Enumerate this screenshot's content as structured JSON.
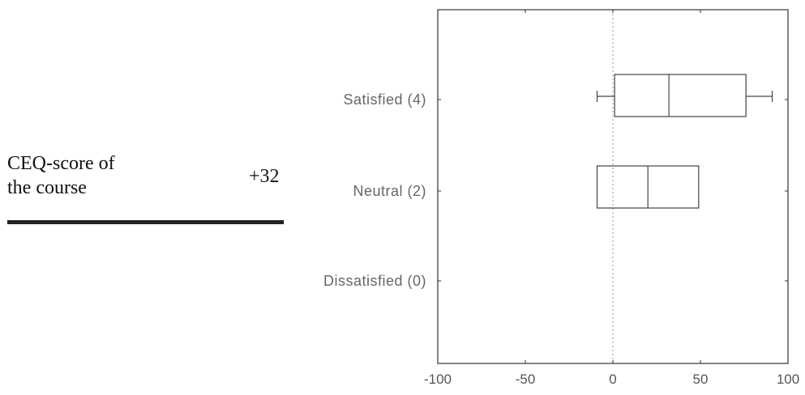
{
  "left_panel": {
    "label_line1": "CEQ-score of",
    "label_line2": "the course",
    "score_value": "+32"
  },
  "chart_data": {
    "type": "boxplot",
    "orientation": "horizontal",
    "title": "",
    "xlabel": "",
    "ylabel": "",
    "xlim": [
      -100,
      100
    ],
    "xticks": [
      -100,
      -50,
      0,
      50,
      100
    ],
    "xtick_labels": [
      "-100",
      "-50",
      "0",
      "50",
      "100"
    ],
    "categories": [
      "Satisfied (4)",
      "Neutral (2)",
      "Dissatisfied (0)"
    ],
    "boxes": [
      {
        "category": "Satisfied (4)",
        "whisker_low": -9,
        "q1": 1,
        "median": 32,
        "q3": 76,
        "whisker_high": 91
      },
      {
        "category": "Neutral (2)",
        "whisker_low": -9,
        "q1": -9,
        "median": 20,
        "q3": 49,
        "whisker_high": 49
      },
      {
        "category": "Dissatisfied (0)",
        "empty": true
      }
    ],
    "reference_line": 0,
    "grid": false,
    "colors": {
      "box": "#444444",
      "reference": "#bbbbbb",
      "frame": "#333333"
    }
  }
}
